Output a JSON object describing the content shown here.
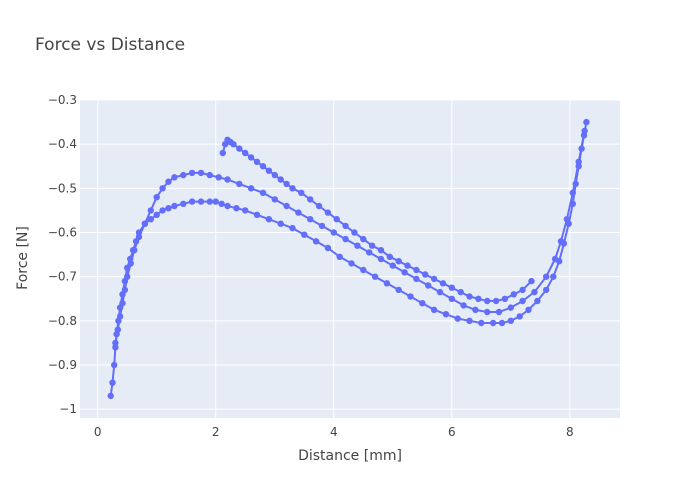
{
  "chart_data": {
    "type": "scatter",
    "mode": "lines+markers",
    "title": "Force vs Distance",
    "xlabel": "Distance [mm]",
    "ylabel": "Force [N]",
    "xlim": [
      -0.3,
      8.85
    ],
    "ylim": [
      -1.02,
      -0.3
    ],
    "xticks": [
      0,
      2,
      4,
      6,
      8
    ],
    "yticks": [
      -1,
      -0.9,
      -0.8,
      -0.7,
      -0.6,
      -0.5,
      -0.4,
      -0.3
    ],
    "xtick_labels": [
      "0",
      "2",
      "4",
      "6",
      "8"
    ],
    "ytick_labels": [
      "−1",
      "−0.9",
      "−0.8",
      "−0.7",
      "−0.6",
      "−0.5",
      "−0.4",
      "−0.3"
    ],
    "grid": true,
    "colors": {
      "series": "#636efa",
      "plot_bg": "#e5ecf6",
      "grid": "#ffffff",
      "text": "#444444",
      "title": "#444444"
    },
    "series": [
      {
        "x": [
          0.22,
          0.25,
          0.28,
          0.3,
          0.32,
          0.35,
          0.38,
          0.42,
          0.46,
          0.5,
          0.55,
          0.6,
          0.65,
          0.7,
          0.8,
          0.9,
          1.0,
          1.1,
          1.2,
          1.3,
          1.45,
          1.6,
          1.75,
          1.9,
          2.0,
          2.1,
          2.2,
          2.35,
          2.5,
          2.7,
          2.9,
          3.1,
          3.3,
          3.5,
          3.7,
          3.9,
          4.1,
          4.3,
          4.5,
          4.7,
          4.9,
          5.1,
          5.3,
          5.5,
          5.7,
          5.9,
          6.1,
          6.3,
          6.5,
          6.7,
          6.85,
          7.0,
          7.15,
          7.3,
          7.45,
          7.6,
          7.72,
          7.82,
          7.9,
          7.98,
          8.05,
          8.1,
          8.15,
          8.2,
          8.24,
          8.28
        ],
        "y": [
          -0.97,
          -0.94,
          -0.9,
          -0.86,
          -0.83,
          -0.8,
          -0.77,
          -0.74,
          -0.71,
          -0.68,
          -0.66,
          -0.64,
          -0.62,
          -0.6,
          -0.58,
          -0.57,
          -0.56,
          -0.55,
          -0.545,
          -0.54,
          -0.535,
          -0.53,
          -0.53,
          -0.53,
          -0.53,
          -0.535,
          -0.54,
          -0.545,
          -0.55,
          -0.56,
          -0.57,
          -0.58,
          -0.59,
          -0.605,
          -0.62,
          -0.635,
          -0.655,
          -0.67,
          -0.685,
          -0.7,
          -0.715,
          -0.73,
          -0.745,
          -0.76,
          -0.775,
          -0.785,
          -0.795,
          -0.8,
          -0.805,
          -0.805,
          -0.805,
          -0.8,
          -0.79,
          -0.775,
          -0.755,
          -0.73,
          -0.7,
          -0.665,
          -0.625,
          -0.58,
          -0.535,
          -0.49,
          -0.45,
          -0.41,
          -0.38,
          -0.35
        ]
      },
      {
        "x": [
          0.3,
          0.34,
          0.38,
          0.42,
          0.46,
          0.5,
          0.56,
          0.62,
          0.7,
          0.8,
          0.9,
          1.0,
          1.1,
          1.2,
          1.3,
          1.45,
          1.6,
          1.75,
          1.9,
          2.05,
          2.2,
          2.4,
          2.6,
          2.8,
          3.0,
          3.2,
          3.4,
          3.6,
          3.8,
          4.0,
          4.2,
          4.4,
          4.6,
          4.8,
          5.0,
          5.2,
          5.4,
          5.6,
          5.8,
          6.0,
          6.2,
          6.4,
          6.6,
          6.8,
          7.0,
          7.2,
          7.4,
          7.6,
          7.75,
          7.85,
          7.95,
          8.05,
          8.15,
          8.25
        ],
        "y": [
          -0.85,
          -0.82,
          -0.79,
          -0.76,
          -0.73,
          -0.7,
          -0.67,
          -0.64,
          -0.61,
          -0.58,
          -0.55,
          -0.52,
          -0.5,
          -0.485,
          -0.475,
          -0.47,
          -0.465,
          -0.465,
          -0.47,
          -0.475,
          -0.48,
          -0.49,
          -0.5,
          -0.51,
          -0.525,
          -0.54,
          -0.555,
          -0.57,
          -0.585,
          -0.6,
          -0.615,
          -0.63,
          -0.645,
          -0.66,
          -0.675,
          -0.69,
          -0.705,
          -0.72,
          -0.735,
          -0.75,
          -0.765,
          -0.775,
          -0.78,
          -0.78,
          -0.77,
          -0.755,
          -0.735,
          -0.7,
          -0.66,
          -0.62,
          -0.57,
          -0.51,
          -0.44,
          -0.37
        ]
      },
      {
        "x": [
          2.12,
          2.16,
          2.2,
          2.25,
          2.3,
          2.4,
          2.5,
          2.6,
          2.7,
          2.8,
          2.9,
          3.0,
          3.1,
          3.2,
          3.3,
          3.45,
          3.6,
          3.75,
          3.9,
          4.05,
          4.2,
          4.35,
          4.5,
          4.65,
          4.8,
          4.95,
          5.1,
          5.25,
          5.4,
          5.55,
          5.7,
          5.85,
          6.0,
          6.15,
          6.3,
          6.45,
          6.6,
          6.75,
          6.9,
          7.05,
          7.2,
          7.35
        ],
        "y": [
          -0.42,
          -0.4,
          -0.39,
          -0.395,
          -0.4,
          -0.41,
          -0.42,
          -0.43,
          -0.44,
          -0.45,
          -0.46,
          -0.47,
          -0.48,
          -0.49,
          -0.5,
          -0.51,
          -0.525,
          -0.54,
          -0.555,
          -0.57,
          -0.585,
          -0.6,
          -0.615,
          -0.63,
          -0.64,
          -0.655,
          -0.665,
          -0.675,
          -0.685,
          -0.695,
          -0.705,
          -0.715,
          -0.725,
          -0.735,
          -0.745,
          -0.75,
          -0.755,
          -0.755,
          -0.75,
          -0.74,
          -0.73,
          -0.71
        ]
      }
    ]
  }
}
